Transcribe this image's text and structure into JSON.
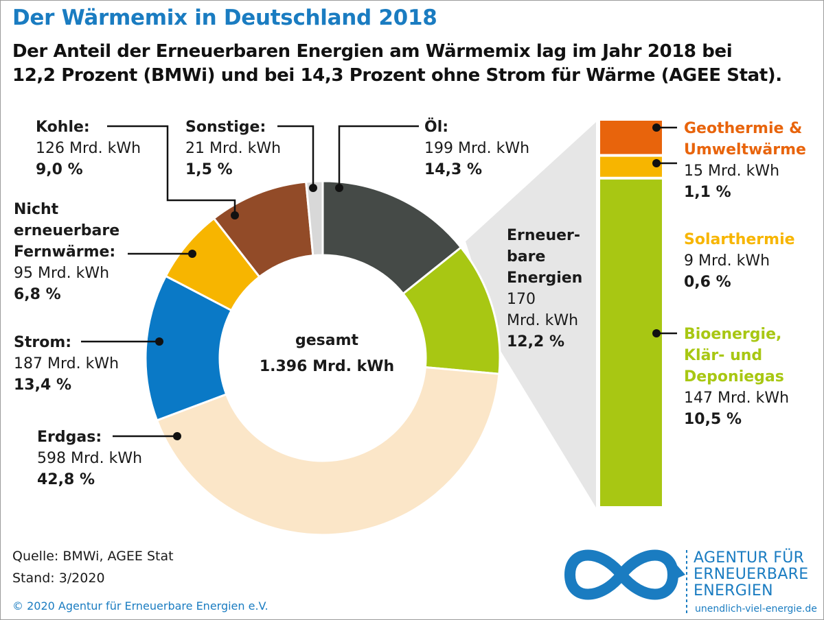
{
  "header": {
    "title": "Der Wärmemix in Deutschland 2018",
    "subtitle_line1": "Der Anteil der Erneuerbaren Energien am Wärmemix lag im Jahr 2018 bei",
    "subtitle_line2": "12,2 Prozent (BMWi) und bei 14,3 Prozent ohne Strom für Wärme (AGEE Stat)."
  },
  "chart_data": [
    {
      "type": "pie",
      "donut": true,
      "center_label_line1": "gesamt",
      "center_label_line2": "1.396 Mrd. kWh",
      "unit": "Mrd. kWh",
      "slices": [
        {
          "name": "Öl:",
          "value": 199,
          "value_text": "199 Mrd. kWh",
          "percent_text": "14,3 %",
          "color": "#454a47"
        },
        {
          "name": "Erneuerbare Energien",
          "value": 170,
          "value_text": "170 Mrd. kWh",
          "percent_text": "12,2 %",
          "color": "#a8c713"
        },
        {
          "name": "Erdgas:",
          "value": 598,
          "value_text": "598 Mrd. kWh",
          "percent_text": "42,8 %",
          "color": "#fbe6c8"
        },
        {
          "name": "Strom:",
          "value": 187,
          "value_text": "187 Mrd. kWh",
          "percent_text": "13,4 %",
          "color": "#0a79c6"
        },
        {
          "name": "Nicht erneuerbare Fernwärme:",
          "value": 95,
          "value_text": "95 Mrd. kWh",
          "percent_text": "6,8 %",
          "color": "#f7b500"
        },
        {
          "name": "Kohle:",
          "value": 126,
          "value_text": "126 Mrd. kWh",
          "percent_text": "9,0 %",
          "color": "#924b28"
        },
        {
          "name": "Sonstige:",
          "value": 21,
          "value_text": "21 Mrd. kWh",
          "percent_text": "1,5 %",
          "color": "#d8d8d8"
        }
      ]
    },
    {
      "type": "bar",
      "stacked": true,
      "breakdown_of": "Erneuerbare Energien",
      "unit": "Mrd. kWh",
      "segments": [
        {
          "name": "Bioenergie, Klär- und Deponiegas",
          "value": 147,
          "value_text": "147 Mrd. kWh",
          "percent_text": "10,5 %",
          "color": "#a8c713"
        },
        {
          "name": "Solarthermie",
          "value": 9,
          "value_text": "9 Mrd. kWh",
          "percent_text": "0,6 %",
          "color": "#f7b500"
        },
        {
          "name": "Geothermie & Umweltwärme",
          "value": 15,
          "value_text": "15 Mrd. kWh",
          "percent_text": "1,1 %",
          "color": "#e8640c"
        }
      ]
    }
  ],
  "labels": {
    "kohle": {
      "name": "Kohle:",
      "value": "126 Mrd. kWh",
      "percent": "9,0 %"
    },
    "sonstige": {
      "name": "Sonstige:",
      "value": "21 Mrd. kWh",
      "percent": "1,5 %"
    },
    "oel": {
      "name": "Öl:",
      "value": "199 Mrd. kWh",
      "percent": "14,3 %"
    },
    "fernwaerme": {
      "name1": "Nicht",
      "name2": "erneuerbare",
      "name3": "Fernwärme:",
      "value": "95 Mrd. kWh",
      "percent": "6,8 %"
    },
    "strom": {
      "name": "Strom:",
      "value": "187 Mrd. kWh",
      "percent": "13,4 %"
    },
    "erdgas": {
      "name": "Erdgas:",
      "value": "598 Mrd. kWh",
      "percent": "42,8 %"
    },
    "ee": {
      "name1": "Erneuer-",
      "name2": "bare",
      "name3": "Energien",
      "value1": "170",
      "value2": "Mrd. kWh",
      "percent": "12,2 %"
    },
    "geo": {
      "name1": "Geothermie &",
      "name2": "Umweltwärme",
      "value": "15 Mrd. kWh",
      "percent": "1,1 %"
    },
    "solar": {
      "name": "Solarthermie",
      "value": "9 Mrd. kWh",
      "percent": "0,6 %"
    },
    "bio": {
      "name1": "Bioenergie,",
      "name2": "Klär- und",
      "name3": "Deponiegas",
      "value": "147 Mrd. kWh",
      "percent": "10,5 %"
    }
  },
  "footer": {
    "source": "Quelle: BMWi, AGEE Stat",
    "stand": "Stand: 3/2020",
    "copyright": "© 2020 Agentur für Erneuerbare Energien e.V.",
    "logo_line1": "AGENTUR FÜR",
    "logo_line2": "ERNEUERBARE",
    "logo_line3": "ENERGIEN",
    "logo_url": "unendlich-viel-energie.de"
  },
  "colors": {
    "brand_blue": "#1a7cc1",
    "geo_orange": "#e8640c",
    "solar_yellow": "#f7b500",
    "bio_green": "#a8c713"
  }
}
